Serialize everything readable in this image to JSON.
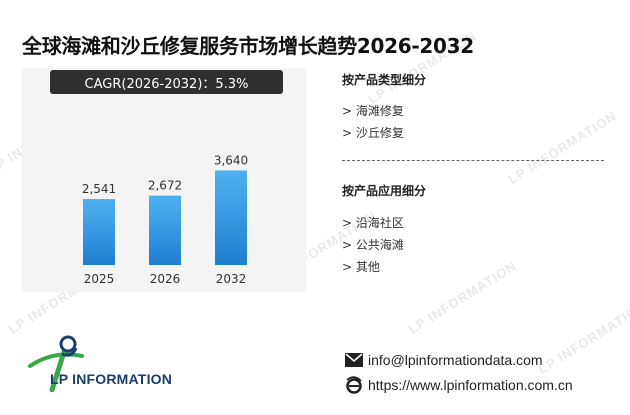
{
  "title": "全球海滩和沙丘修复服务市场增长趋势2026-2032",
  "cagr_label": "CAGR(2026-2032)：5.3%",
  "watermark": "LP INFORMATION",
  "chart_data": {
    "type": "bar",
    "categories": [
      "2025",
      "2026",
      "2032"
    ],
    "values": [
      2541,
      2672,
      3640
    ],
    "value_labels": [
      "2,541",
      "2,672",
      "3,640"
    ],
    "ylim": [
      0,
      4000
    ],
    "grid": false,
    "bar_color_top": "#4fb0f0",
    "bar_color_bottom": "#1f7fd0"
  },
  "segments": {
    "by_type": {
      "heading": "按产品类型细分",
      "items": [
        "> 海滩修复",
        "> 沙丘修复"
      ]
    },
    "by_application": {
      "heading": "按产品应用细分",
      "items": [
        "> 沿海社区",
        "> 公共海滩",
        "> 其他"
      ]
    }
  },
  "logo": {
    "text": "LP INFORMATION",
    "colors": {
      "green": "#3aa84a",
      "blue": "#1a3c6e"
    }
  },
  "contact": {
    "email": "info@lpinformationdata.com",
    "website": "https://www.lpinformation.com.cn",
    "email_icon": "envelope-icon",
    "website_icon": "internet-explorer-icon"
  }
}
